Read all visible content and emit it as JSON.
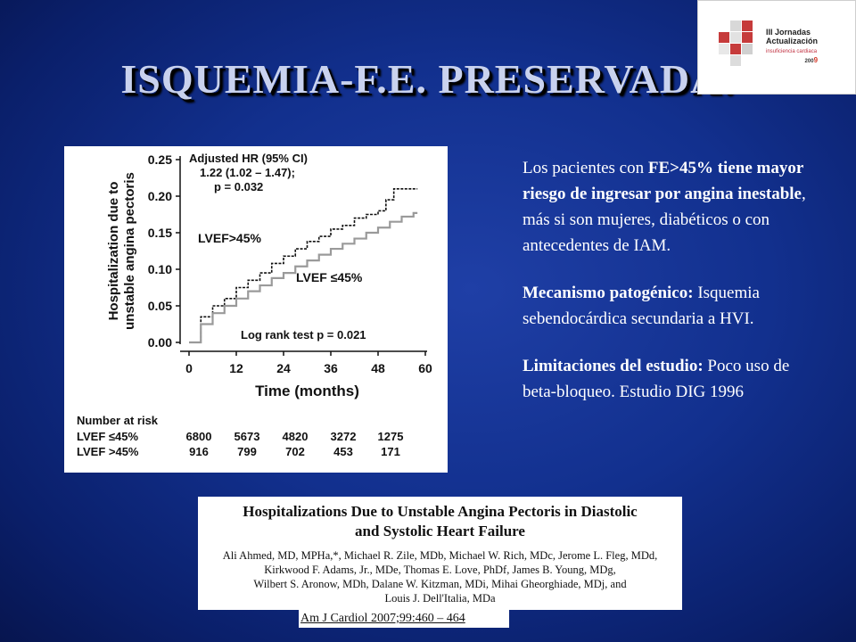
{
  "slide": {
    "title": "ISQUEMIA-F.E. PRESERVADA:"
  },
  "logo": {
    "line1": "III Jornadas",
    "line2": "Actualización",
    "line3": "insuficiencia cardiaca",
    "year_prefix": "200",
    "year_suffix": "9"
  },
  "chart_data": {
    "type": "line",
    "ylabel": "Hospitalization due to unstable angina pectoris",
    "xlabel": "Time (months)",
    "x_ticks": [
      "0",
      "12",
      "24",
      "36",
      "48",
      "60"
    ],
    "y_ticks": [
      "0.00",
      "0.05",
      "0.10",
      "0.15",
      "0.20",
      "0.25"
    ],
    "xlim": [
      0,
      60
    ],
    "ylim": [
      0,
      0.25
    ],
    "annotations": {
      "hr_line1": "Adjusted HR (95% CI)",
      "hr_line2": "1.22 (1.02 – 1.47);",
      "hr_line3": "p = 0.032",
      "logrank": "Log rank test p = 0.021",
      "label_preserved": "LVEF>45%",
      "label_reduced": "LVEF ≤45%"
    },
    "series": [
      {
        "name": "LVEF>45%",
        "color": "#111111",
        "x": [
          0,
          3,
          6,
          9,
          12,
          15,
          18,
          21,
          24,
          27,
          30,
          33,
          36,
          39,
          42,
          45,
          48,
          50,
          52,
          54,
          56,
          58
        ],
        "y": [
          0.0,
          0.035,
          0.05,
          0.06,
          0.075,
          0.085,
          0.095,
          0.108,
          0.118,
          0.128,
          0.138,
          0.145,
          0.155,
          0.16,
          0.17,
          0.175,
          0.18,
          0.195,
          0.21,
          0.21,
          0.21,
          0.21
        ]
      },
      {
        "name": "LVEF ≤45%",
        "color": "#9a9a9a",
        "x": [
          0,
          3,
          6,
          9,
          12,
          15,
          18,
          21,
          24,
          27,
          30,
          33,
          36,
          39,
          42,
          45,
          48,
          51,
          54,
          57,
          58
        ],
        "y": [
          0.0,
          0.025,
          0.04,
          0.05,
          0.06,
          0.07,
          0.078,
          0.088,
          0.095,
          0.104,
          0.112,
          0.12,
          0.128,
          0.135,
          0.142,
          0.15,
          0.157,
          0.165,
          0.172,
          0.177,
          0.177
        ]
      }
    ]
  },
  "risk_table": {
    "title": "Number at risk",
    "rows": [
      {
        "label": "LVEF ≤45%",
        "values": [
          "6800",
          "5673",
          "4820",
          "3272",
          "1275"
        ]
      },
      {
        "label": "LVEF >45%",
        "values": [
          "916",
          "799",
          "702",
          "453",
          "171"
        ]
      }
    ]
  },
  "findings": {
    "p1_pre": "Los pacientes con ",
    "p1_bold": "FE>45% tiene mayor riesgo de ingresar por angina inestable",
    "p1_post": ", más si son mujeres, diabéticos o con antecedentes de IAM.",
    "p2_bold": "Mecanismo patogénico:",
    "p2_text": " Isquemia sebendocárdica secundaria a HVI.",
    "p3_bold": "Limitaciones del estudio:",
    "p3_text": " Poco uso de beta-bloqueo. Estudio DIG 1996"
  },
  "paper": {
    "title_line1": "Hospitalizations Due to Unstable Angina Pectoris in Diastolic",
    "title_line2": "and Systolic Heart Failure",
    "authors_line1": "Ali Ahmed, MD, MPHa,*, Michael R. Zile, MDb, Michael W. Rich, MDc, Jerome L. Fleg, MDd,",
    "authors_line2": "Kirkwood F. Adams, Jr., MDe, Thomas E. Love, PhDf, James B. Young, MDg,",
    "authors_line3": "Wilbert S. Aronow, MDh, Dalane W. Kitzman, MDi, Mihai Gheorghiade, MDj, and",
    "authors_line4": "Louis J. Dell'Italia, MDa",
    "citation": "Am J Cardiol 2007;99:460 – 464"
  }
}
